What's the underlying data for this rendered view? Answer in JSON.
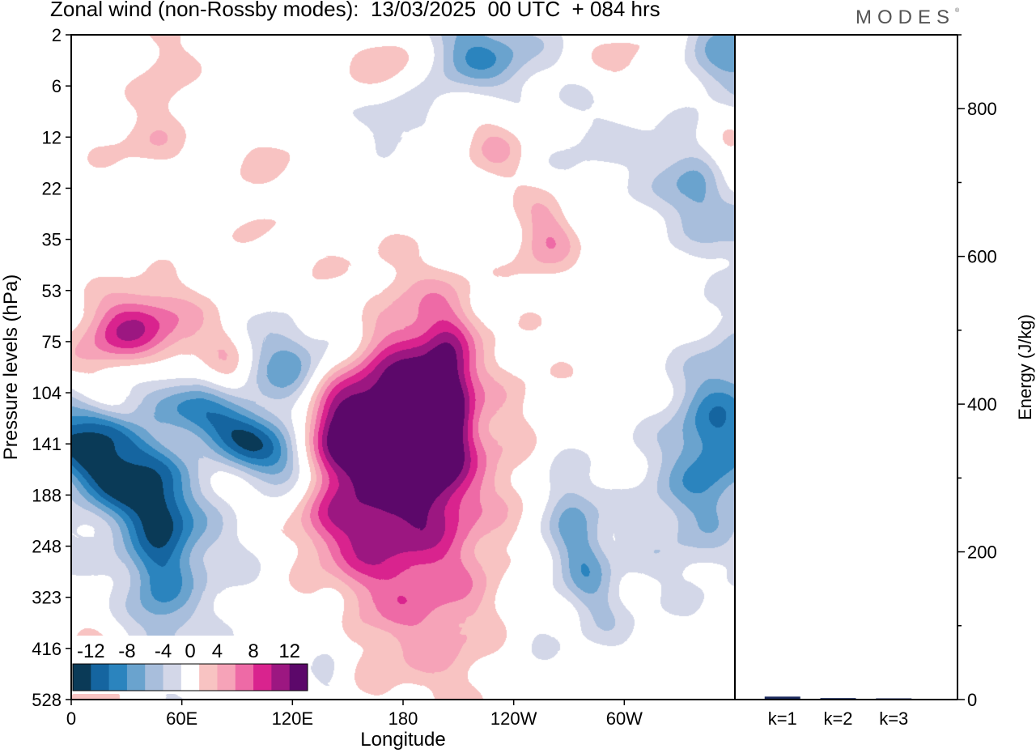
{
  "title": "Zonal wind (non-Rossby modes):  13/03/2025  00 UTC  + 084 hrs",
  "brand": "MODES",
  "brand_mark": "®",
  "colors": {
    "neg": [
      "#0a3a57",
      "#1565a0",
      "#2b84be",
      "#6aa3ce",
      "#a8bedc",
      "#d3d7e8"
    ],
    "zero": "#ffffff",
    "pos": [
      "#f8c3c2",
      "#f6a3b8",
      "#ee6aa6",
      "#d9238e",
      "#9c1781",
      "#5c086a"
    ]
  },
  "chart_data": [
    {
      "type": "heatmap",
      "title": "Zonal wind (non-Rossby modes):  13/03/2025  00 UTC  + 084 hrs",
      "xlabel": "Longitude",
      "ylabel": "Pressure levels (hPa)",
      "x_ticks": [
        "0",
        "60E",
        "120E",
        "180",
        "120W",
        "60W"
      ],
      "x_tick_degrees": [
        0,
        60,
        120,
        180,
        240,
        300
      ],
      "xlim_degrees": [
        0,
        360
      ],
      "y_ticks": [
        "2",
        "6",
        "12",
        "22",
        "35",
        "53",
        "75",
        "104",
        "141",
        "188",
        "248",
        "323",
        "416",
        "528"
      ],
      "y_scale": "pressure levels (top 2 hPa, bottom 528 hPa)",
      "colorbar": {
        "tick_labels": [
          "-12",
          "-8",
          "-4",
          "0",
          "4",
          "8",
          "12"
        ],
        "levels": [
          -14,
          -12,
          -10,
          -8,
          -6,
          -4,
          -2,
          2,
          4,
          6,
          8,
          10,
          12,
          14
        ]
      },
      "features": [
        {
          "sign": "neg",
          "lon": 15,
          "level": 8.4,
          "rlon": 13,
          "rlev": 1.3,
          "angle": -55,
          "amp": 13
        },
        {
          "sign": "neg",
          "lon": 25,
          "level": 7.8,
          "rlon": 7,
          "rlev": 0.9,
          "angle": -55,
          "amp": 6
        },
        {
          "sign": "neg",
          "lon": 95,
          "level": 7.9,
          "rlon": 12,
          "rlev": 1.6,
          "angle": -62,
          "amp": 12
        },
        {
          "sign": "neg",
          "lon": 125,
          "level": 6.5,
          "rlon": 20,
          "rlev": 0.75,
          "angle": -20,
          "amp": 10
        },
        {
          "sign": "neg",
          "lon": 150,
          "level": 5.7,
          "rlon": 15,
          "rlev": 0.55,
          "angle": -15,
          "amp": 5
        },
        {
          "sign": "neg",
          "lon": 48,
          "level": 10.2,
          "rlon": 12,
          "rlev": 1.4,
          "angle": 0,
          "amp": 6
        },
        {
          "sign": "neg",
          "lon": 350,
          "level": 7.8,
          "rlon": 18,
          "rlev": 1.4,
          "angle": 10,
          "amp": 9
        },
        {
          "sign": "neg",
          "lon": 274,
          "level": 9.8,
          "rlon": 10,
          "rlev": 1.3,
          "angle": -15,
          "amp": 7
        },
        {
          "sign": "neg",
          "lon": 357,
          "level": 0.4,
          "rlon": 18,
          "rlev": 0.7,
          "angle": 0,
          "amp": 7
        },
        {
          "sign": "neg",
          "lon": 220,
          "level": 0.35,
          "rlon": 25,
          "rlev": 0.6,
          "angle": 0,
          "amp": 8
        },
        {
          "sign": "neg",
          "lon": 345,
          "level": 3.3,
          "rlon": 14,
          "rlev": 1.0,
          "angle": -40,
          "amp": 8
        },
        {
          "sign": "neg",
          "lon": 175,
          "level": 1.6,
          "rlon": 14,
          "rlev": 0.45,
          "angle": 0,
          "amp": 4
        },
        {
          "sign": "neg",
          "lon": 300,
          "level": 9.5,
          "rlon": 45,
          "rlev": 1.6,
          "angle": 0,
          "amp": 2.5
        },
        {
          "sign": "neg",
          "lon": 140,
          "level": 12.0,
          "rlon": 8,
          "rlev": 1.3,
          "angle": 0,
          "amp": 3
        },
        {
          "sign": "neg",
          "lon": 20,
          "level": 10.0,
          "rlon": 50,
          "rlev": 1.0,
          "angle": 0,
          "amp": 2.5
        },
        {
          "sign": "neg",
          "lon": 280,
          "level": 2.2,
          "rlon": 20,
          "rlev": 1.2,
          "angle": 0,
          "amp": 2.4
        },
        {
          "sign": "neg",
          "lon": 70,
          "level": 10.8,
          "rlon": 35,
          "rlev": 1.6,
          "angle": 0,
          "amp": 2.3
        },
        {
          "sign": "neg",
          "lon": 250,
          "level": 11.5,
          "rlon": 12,
          "rlev": 1.3,
          "angle": 0,
          "amp": 2.2
        },
        {
          "sign": "pos",
          "lon": 165,
          "level": 8.0,
          "rlon": 22,
          "rlev": 1.7,
          "angle": 0,
          "amp": 13
        },
        {
          "sign": "pos",
          "lon": 140,
          "level": 8.0,
          "rlon": 12,
          "rlev": 1.4,
          "angle": 0,
          "amp": 7
        },
        {
          "sign": "pos",
          "lon": 195,
          "level": 7.5,
          "rlon": 15,
          "rlev": 1.6,
          "angle": 0,
          "amp": 6
        },
        {
          "sign": "pos",
          "lon": 205,
          "level": 7.0,
          "rlon": 9,
          "rlev": 1.1,
          "angle": 0,
          "amp": 7
        },
        {
          "sign": "pos",
          "lon": 175,
          "level": 9.0,
          "rlon": 55,
          "rlev": 2.3,
          "angle": 0,
          "amp": 3.3
        },
        {
          "sign": "pos",
          "lon": 230,
          "level": 8.3,
          "rlon": 40,
          "rlev": 1.6,
          "angle": 0,
          "amp": 2.6
        },
        {
          "sign": "pos",
          "lon": 30,
          "level": 5.8,
          "rlon": 22,
          "rlev": 0.55,
          "angle": -30,
          "amp": 10
        },
        {
          "sign": "pos",
          "lon": 258,
          "level": 3.9,
          "rlon": 12,
          "rlev": 0.6,
          "angle": 0,
          "amp": 6
        },
        {
          "sign": "pos",
          "lon": 230,
          "level": 2.2,
          "rlon": 12,
          "rlev": 0.55,
          "angle": -20,
          "amp": 4
        },
        {
          "sign": "pos",
          "lon": 175,
          "level": 0.5,
          "rlon": 16,
          "rlev": 0.5,
          "angle": 0,
          "amp": 5
        },
        {
          "sign": "pos",
          "lon": 300,
          "level": 0.5,
          "rlon": 20,
          "rlev": 0.5,
          "angle": 0,
          "amp": 3
        },
        {
          "sign": "pos",
          "lon": 10,
          "level": 12.6,
          "rlon": 12,
          "rlev": 1.3,
          "angle": 0,
          "amp": 4
        },
        {
          "sign": "pos",
          "lon": 200,
          "level": 11.5,
          "rlon": 25,
          "rlev": 1.3,
          "angle": 0,
          "amp": 3.3
        },
        {
          "sign": "pos",
          "lon": 50,
          "level": 0.8,
          "rlon": 12,
          "rlev": 1.0,
          "angle": 0,
          "amp": 3.3
        },
        {
          "sign": "pos",
          "lon": 65,
          "level": 6.0,
          "rlon": 15,
          "rlev": 0.5,
          "angle": -20,
          "amp": 2.5
        },
        {
          "sign": "pos",
          "lon": 355,
          "level": 2.7,
          "rlon": 8,
          "rlev": 0.9,
          "angle": 0,
          "amp": 3
        },
        {
          "sign": "pos",
          "lon": 100,
          "level": 3.6,
          "rlon": 10,
          "rlev": 0.6,
          "angle": -30,
          "amp": 2.3
        },
        {
          "sign": "pos",
          "lon": 130,
          "level": 5.4,
          "rlon": 8,
          "rlev": 0.5,
          "angle": 0,
          "amp": 3
        },
        {
          "sign": "pos",
          "lon": 85,
          "level": 6.4,
          "rlon": 8,
          "rlev": 0.5,
          "angle": 0,
          "amp": 3
        },
        {
          "sign": "pos",
          "lon": 30,
          "level": 2.1,
          "rlon": 20,
          "rlev": 0.4,
          "angle": 0,
          "amp": 2.3
        },
        {
          "sign": "pos",
          "lon": 110,
          "level": 2.3,
          "rlon": 18,
          "rlev": 0.4,
          "angle": -20,
          "amp": 2.3
        }
      ]
    },
    {
      "type": "bar",
      "categories": [
        "k=1",
        "k=2",
        "k=3"
      ],
      "values": [
        4,
        2,
        1
      ],
      "ylabel": "Energy (J/kg)",
      "ylim": [
        0,
        900
      ],
      "y_ticks": [
        0,
        200,
        400,
        600,
        800
      ],
      "bar_color": "#1b2a5e"
    }
  ]
}
